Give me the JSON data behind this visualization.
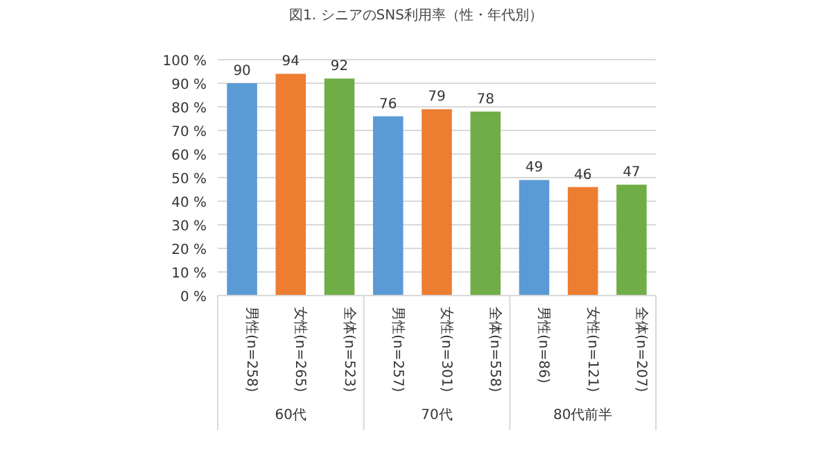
{
  "chart_data": {
    "type": "bar",
    "title": "図1. シニアのSNS利用率（性・年代別）",
    "categories": [
      "男性(n=258)",
      "女性(n=265)",
      "全体(n=523)",
      "男性(n=257)",
      "女性(n=301)",
      "全体(n=558)",
      "男性(n=86)",
      "女性(n=121)",
      "全体(n=207)"
    ],
    "values": [
      90,
      94,
      92,
      76,
      79,
      78,
      49,
      46,
      47
    ],
    "colors": [
      "#5b9bd5",
      "#ed7d31",
      "#70ad47",
      "#5b9bd5",
      "#ed7d31",
      "#70ad47",
      "#5b9bd5",
      "#ed7d31",
      "#70ad47"
    ],
    "ylim": [
      0,
      100
    ],
    "yticks": [
      {
        "value": 0,
        "label": "0 %"
      },
      {
        "value": 10,
        "label": "10 %"
      },
      {
        "value": 20,
        "label": "20 %"
      },
      {
        "value": 30,
        "label": "30 %"
      },
      {
        "value": 40,
        "label": "40 %"
      },
      {
        "value": 50,
        "label": "50 %"
      },
      {
        "value": 60,
        "label": "60 %"
      },
      {
        "value": 70,
        "label": "70 %"
      },
      {
        "value": 80,
        "label": "80 %"
      },
      {
        "value": 90,
        "label": "90 %"
      },
      {
        "value": 100,
        "label": "100 %"
      }
    ],
    "grid": "y",
    "data_labels": true,
    "annotations": [
      "60代",
      "70代",
      "80代前半"
    ]
  }
}
